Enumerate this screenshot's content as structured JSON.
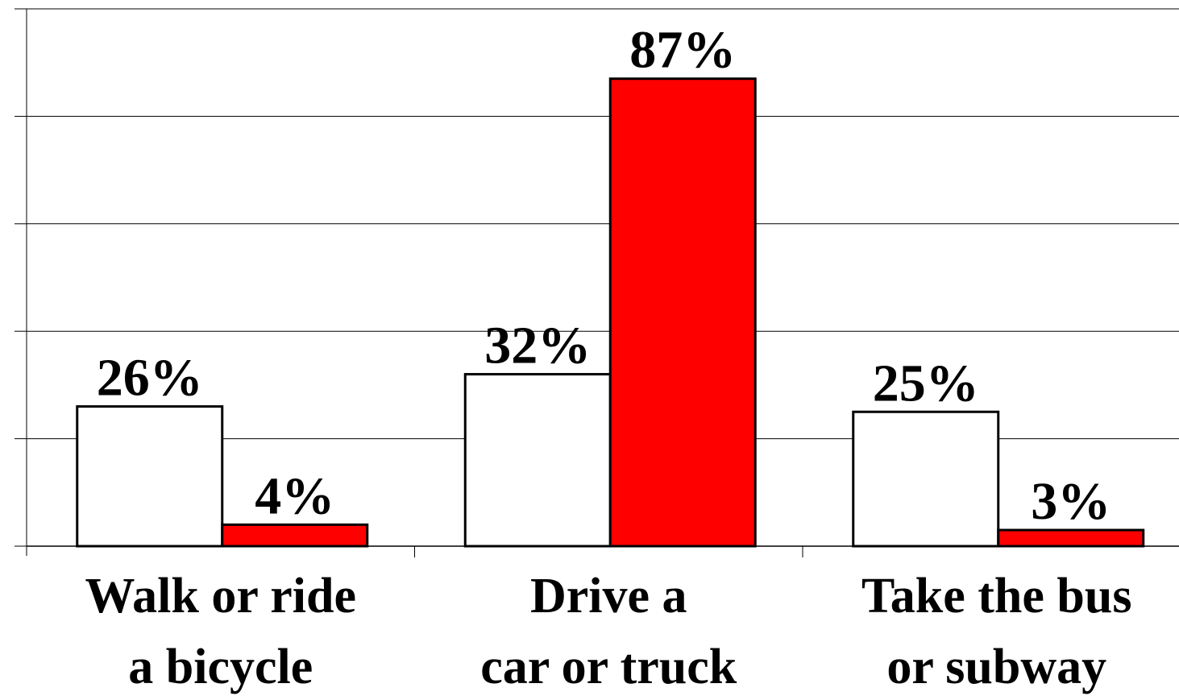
{
  "chart_data": {
    "type": "bar",
    "categories": [
      "Walk or ride\na bicycle",
      "Drive a\ncar or truck",
      "Take the bus\nor subway"
    ],
    "series": [
      {
        "color": "#ffffff",
        "values": [
          26,
          32,
          25
        ],
        "value_labels": [
          "26%",
          "32%",
          "25%"
        ]
      },
      {
        "color": "#ff0000",
        "values": [
          4,
          87,
          3
        ],
        "value_labels": [
          "4%",
          "87%",
          "3%"
        ]
      }
    ],
    "ylim": [
      0,
      100
    ],
    "yticks": [
      0,
      20,
      40,
      60,
      80,
      100
    ],
    "grid": true
  }
}
